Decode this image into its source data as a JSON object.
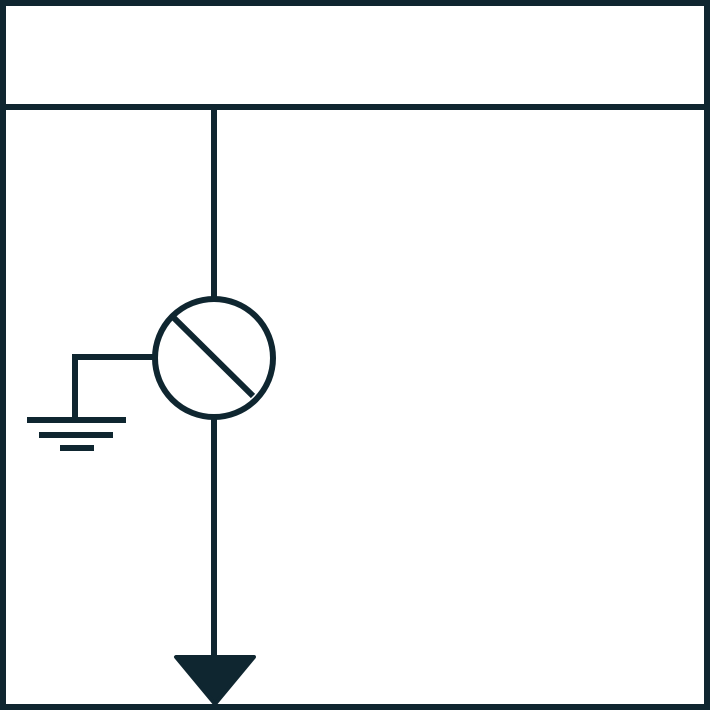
{
  "diagram": {
    "kind": "single-line electrical schematic",
    "elements": [
      {
        "id": "panel-frame",
        "icon": "rectangle-frame"
      },
      {
        "id": "busbar",
        "icon": "horizontal-bus-line"
      },
      {
        "id": "feeder-conductor",
        "icon": "vertical-line"
      },
      {
        "id": "surge-device",
        "icon": "circle-with-diagonal-icon"
      },
      {
        "id": "ground-connection",
        "icon": "earth-ground-icon"
      },
      {
        "id": "load-output",
        "icon": "downward-triangle-arrow-icon"
      }
    ]
  },
  "colors": {
    "stroke": "#0f2630",
    "background": "#ffffff"
  }
}
